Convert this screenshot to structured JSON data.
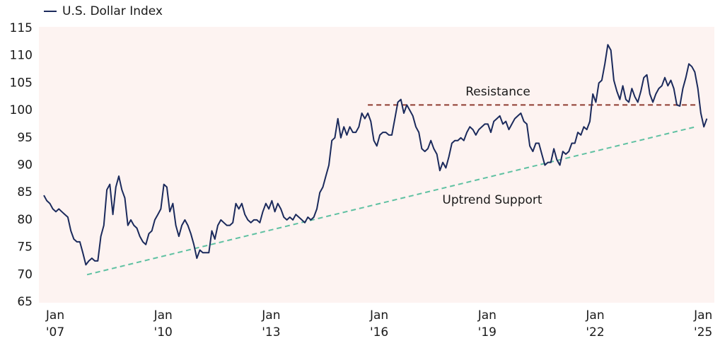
{
  "chart_data": {
    "type": "line",
    "legend": "top-left",
    "categories": [
      "Jan '07",
      null,
      null,
      null,
      null,
      null,
      null,
      null,
      null,
      null,
      null,
      null,
      null,
      null,
      null,
      null,
      null,
      null,
      null,
      null,
      null,
      null,
      null,
      null,
      null,
      null,
      null,
      null,
      null,
      null,
      null,
      null,
      null,
      null,
      null,
      null,
      "Jan '10",
      null,
      null,
      null,
      null,
      null,
      null,
      null,
      null,
      null,
      null,
      null,
      null,
      null,
      null,
      null,
      null,
      null,
      null,
      null,
      null,
      null,
      null,
      null,
      null,
      null,
      null,
      null,
      null,
      null,
      null,
      null,
      null,
      null,
      null,
      null,
      "Jan '13",
      null,
      null,
      null,
      null,
      null,
      null,
      null,
      null,
      null,
      null,
      null,
      null,
      null,
      null,
      null,
      null,
      null,
      null,
      null,
      null,
      null,
      null,
      null,
      null,
      null,
      null,
      null,
      null,
      null,
      null,
      null,
      null,
      null,
      null,
      null,
      "Jan '16",
      null,
      null,
      null,
      null,
      null,
      null,
      null,
      null,
      null,
      null,
      null,
      null,
      null,
      null,
      null,
      null,
      null,
      null,
      null,
      null,
      null,
      null,
      null,
      null,
      null,
      null,
      null,
      null,
      null,
      null,
      null,
      null,
      null,
      null,
      null,
      "Jan '19",
      null,
      null,
      null,
      null,
      null,
      null,
      null,
      null,
      null,
      null,
      null,
      null,
      null,
      null,
      null,
      null,
      null,
      null,
      null,
      null,
      null,
      null,
      null,
      null,
      null,
      null,
      null,
      null,
      null,
      null,
      null,
      null,
      null,
      null,
      null,
      "Jan '22",
      null,
      null,
      null,
      null,
      null,
      null,
      null,
      null,
      null,
      null,
      null,
      null,
      null,
      null,
      null,
      null,
      null,
      null,
      null,
      null,
      null,
      null,
      null,
      null,
      null,
      null,
      null,
      null,
      null,
      null,
      null,
      null,
      null,
      null,
      null,
      "Jan '25",
      null,
      null,
      null,
      null,
      null
    ],
    "series": [
      {
        "name": "U.S. Dollar Index",
        "color": "#1b2a5c",
        "values": [
          84.5,
          83.5,
          83,
          82,
          81.5,
          82,
          81.5,
          81,
          80.5,
          78,
          76.5,
          76,
          76,
          74,
          71.8,
          72.5,
          73,
          72.5,
          72.5,
          77,
          79,
          85.5,
          86.5,
          81,
          86,
          88,
          85.5,
          84,
          79,
          80,
          79,
          78.5,
          77,
          76,
          75.5,
          77.5,
          78,
          80,
          81,
          82,
          86.5,
          86,
          81.5,
          83,
          79,
          77,
          79,
          80,
          79,
          77.5,
          75.5,
          73,
          74.5,
          74,
          74,
          74,
          78,
          76.5,
          79,
          80,
          79.5,
          79,
          79,
          79.5,
          83,
          82,
          83,
          81,
          80,
          79.5,
          80,
          80,
          79.5,
          81.5,
          83,
          82,
          83.5,
          81.5,
          83,
          82,
          80.5,
          80,
          80.5,
          80,
          81,
          80.5,
          80,
          79.5,
          80.5,
          80,
          80.5,
          82,
          85,
          86,
          88,
          90,
          94.5,
          95,
          98.5,
          95,
          97,
          95.5,
          97,
          96,
          96,
          97,
          99.5,
          98.5,
          99.5,
          98,
          94.5,
          93.5,
          95.5,
          96,
          96,
          95.5,
          95.5,
          98.5,
          101.5,
          102,
          99.5,
          101,
          100,
          99,
          97,
          96,
          93,
          92.5,
          93,
          94.5,
          93,
          92,
          89,
          90.5,
          89.5,
          91.5,
          94,
          94.5,
          94.5,
          95,
          94.5,
          96,
          97,
          96.5,
          95.5,
          96.5,
          97,
          97.5,
          97.5,
          96,
          98,
          98.5,
          99,
          97.5,
          98,
          96.5,
          97.5,
          98.5,
          99,
          99.5,
          98,
          97.5,
          93.5,
          92.5,
          94,
          94,
          92,
          90,
          90.5,
          90.5,
          93,
          91,
          90,
          92.5,
          92,
          92.5,
          94,
          94,
          96,
          95.5,
          97,
          96.5,
          98,
          103,
          101.5,
          105,
          105.5,
          108.5,
          112,
          111,
          105.5,
          103.5,
          102,
          104.5,
          102,
          101.5,
          104,
          102.5,
          101.5,
          103.5,
          106,
          106.5,
          103,
          101.5,
          103,
          104,
          104.5,
          106,
          104.5,
          105.5,
          104,
          101,
          100.8,
          104,
          106,
          108.5,
          108,
          107,
          104,
          99.5,
          97,
          98.5
        ]
      }
    ],
    "trendlines": [
      {
        "label": "Resistance",
        "color": "#8e3b30",
        "x": [
          2016.0,
          2025.1
        ],
        "y": [
          101,
          101
        ]
      },
      {
        "label": "Uptrend Support",
        "color": "#5fc1a2",
        "x": [
          2008.2,
          2025.1
        ],
        "y": [
          70,
          97
        ]
      }
    ],
    "ylim": [
      65,
      115
    ],
    "yticks": [
      65,
      70,
      75,
      80,
      85,
      90,
      95,
      100,
      105,
      110,
      115
    ]
  }
}
